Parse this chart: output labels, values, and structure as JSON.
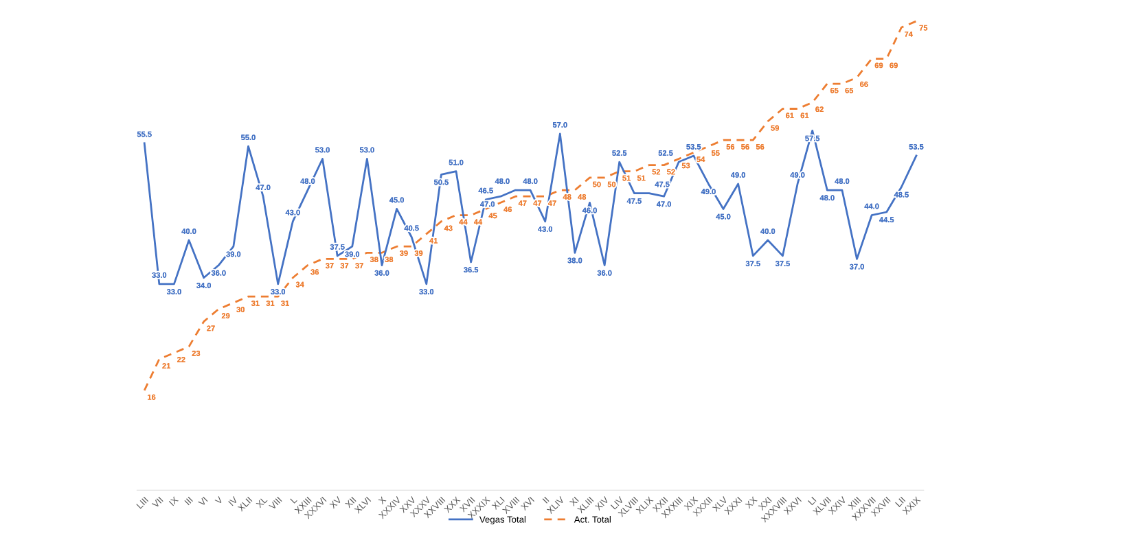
{
  "chart_data": {
    "type": "line",
    "categories": [
      "LIII",
      "VII",
      "IX",
      "III",
      "VI",
      "V",
      "IV",
      "XLII",
      "XL",
      "VIII",
      "L",
      "XXIII",
      "XXXVI",
      "XV",
      "XII",
      "XLVI",
      "X",
      "XXXIV",
      "XXV",
      "XXXV",
      "XXVIII",
      "XXX",
      "XVII",
      "XXXIX",
      "XLI",
      "XVIII",
      "XVI",
      "II",
      "XLIV",
      "XI",
      "XLIII",
      "XIV",
      "LIV",
      "XLVIII",
      "XLIX",
      "XXII",
      "XXXIII",
      "XIX",
      "XXXII",
      "XLV",
      "XXXI",
      "XX",
      "XXI",
      "XXXVIII",
      "XXVI",
      "LI",
      "XLVII",
      "XXIV",
      "XIII",
      "XXXVII",
      "XXVII",
      "LII",
      "XXIX"
    ],
    "series": [
      {
        "name": "Vegas Total",
        "color": "#4472c4",
        "line_style": "solid",
        "values": [
          55.5,
          33.0,
          33.0,
          40.0,
          34.0,
          36.0,
          39.0,
          55.0,
          47.0,
          33.0,
          43.0,
          48.0,
          53.0,
          37.5,
          39.0,
          53.0,
          36.0,
          45.0,
          40.5,
          33.0,
          50.5,
          51.0,
          36.5,
          46.5,
          47.0,
          48.0,
          48.0,
          43.0,
          57.0,
          38.0,
          46.0,
          36.0,
          52.5,
          47.5,
          47.5,
          47.0,
          52.5,
          53.5,
          49.0,
          45.0,
          49.0,
          37.5,
          40.0,
          37.5,
          49.0,
          57.5,
          48.0,
          48.0,
          37.0,
          44.0,
          44.5,
          48.5,
          53.5
        ],
        "value_labels": [
          "55.5",
          "33.0",
          "33.0",
          "40.0",
          "34.0",
          "36.0",
          "39.0",
          "55.0",
          "47.0",
          "33.0",
          "43.0",
          "48.0",
          "53.0",
          "37.5",
          "39.0",
          "53.0",
          "36.0",
          "45.0",
          "40.5",
          "33.0",
          "50.5",
          "51.0",
          "36.5",
          "46.5",
          "47.0",
          "48.0",
          "48.0",
          "43.0",
          "57.0",
          "38.0",
          "46.0",
          "36.0",
          "52.5",
          "47.5",
          "47.5",
          "47.0",
          "52.5",
          "53.5",
          "49.0",
          "45.0",
          "49.0",
          "37.5",
          "40.0",
          "37.5",
          "49.0",
          "57.5",
          "48.0",
          "48.0",
          "37.0",
          "44.0",
          "44.5",
          "48.5",
          "53.5"
        ]
      },
      {
        "name": "Act. Total",
        "color": "#ed7d31",
        "line_style": "dashed",
        "values": [
          16,
          21,
          22,
          23,
          27,
          29,
          30,
          31,
          31,
          31,
          34,
          36,
          37,
          37,
          37,
          38,
          38,
          39,
          39,
          41,
          43,
          44,
          44,
          45,
          46,
          47,
          47,
          47,
          48,
          48,
          50,
          50,
          51,
          51,
          52,
          52,
          53,
          54,
          55,
          56,
          56,
          56,
          59,
          61,
          61,
          62,
          65,
          65,
          66,
          69,
          69,
          74,
          75
        ],
        "value_labels": [
          "16",
          "21",
          "22",
          "23",
          "27",
          "29",
          "30",
          "31",
          "31",
          "31",
          "34",
          "36",
          "37",
          "37",
          "37",
          "38",
          "38",
          "39",
          "39",
          "41",
          "43",
          "44",
          "44",
          "45",
          "46",
          "47",
          "47",
          "47",
          "48",
          "48",
          "50",
          "50",
          "51",
          "51",
          "52",
          "52",
          "53",
          "54",
          "55",
          "56",
          "56",
          "56",
          "59",
          "61",
          "61",
          "62",
          "65",
          "65",
          "66",
          "69",
          "69",
          "74",
          "75"
        ]
      }
    ],
    "tick_labels": "x",
    "grid": false,
    "marker": "none",
    "legend": "bottom"
  }
}
